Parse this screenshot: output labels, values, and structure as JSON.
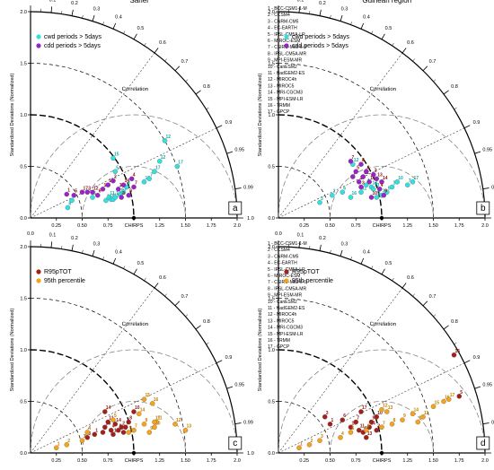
{
  "figure": {
    "model_list": [
      "1 - BCC-CSM1-1-M",
      "2 - CCSM4",
      "3 - CNRM-CM5",
      "4 - EC-EARTH",
      "5 - IPSL-CM5A-LR",
      "6 - MIROC-ESM",
      "7 - CSIRO-Mk3-6-0",
      "8 - IPSL-CM5A-MR",
      "9 - MPI-ESM-MR",
      "10 - CanESM2",
      "11 - HadGEM2-ES",
      "12 - MIROC4h",
      "13 - MIROC5",
      "14 - MRI-CGCM3",
      "15 - MPI-ESM-LR",
      "16 - TRMM",
      "17 - GPCP"
    ],
    "ylabel": "Standardized Deviations (Normalized)",
    "corr_label": "Correlation",
    "ref_label": "CHIRPS",
    "ticks": [
      "0.25",
      "0.50",
      "0.75",
      "1.00",
      "1.25",
      "1.50",
      "1.75",
      "2.0"
    ],
    "yticks": [
      "0.0",
      "0.5",
      "1.0",
      "1.5",
      "2.0"
    ],
    "corr_ticks": [
      "0.0",
      "0.1",
      "0.2",
      "0.3",
      "0.4",
      "0.5",
      "0.6",
      "0.7",
      "0.8",
      "0.9",
      "0.95",
      "0.99",
      "1.0"
    ],
    "colors": {
      "cyan": "#33e0e0",
      "purple": "#9a22c8",
      "darkred": "#a3201a",
      "orange": "#f6a21a"
    }
  },
  "chart_data": [
    {
      "type": "scatter",
      "title": "Sahel",
      "panel_label": "a",
      "legend_position": "top-left",
      "series": [
        {
          "name": "cwd periods > 5days",
          "color": "#33e0e0",
          "points": [
            [
              0.36,
              0.1,
              "8"
            ],
            [
              0.4,
              0.17,
              "1"
            ],
            [
              0.6,
              0.2,
              "6"
            ],
            [
              0.73,
              0.17,
              "16"
            ],
            [
              0.76,
              0.2,
              "11"
            ],
            [
              0.78,
              0.18,
              "4"
            ],
            [
              0.8,
              0.18,
              "13"
            ],
            [
              0.82,
              0.2,
              "14"
            ],
            [
              0.87,
              0.23,
              "9"
            ],
            [
              0.9,
              0.25,
              "2"
            ],
            [
              0.82,
              0.45,
              "5"
            ],
            [
              0.8,
              0.58,
              "15"
            ],
            [
              0.93,
              0.3,
              "3"
            ],
            [
              1.1,
              0.35,
              "10"
            ],
            [
              1.15,
              0.38,
              "7"
            ],
            [
              1.2,
              0.45,
              "17"
            ],
            [
              1.25,
              0.55,
              "12"
            ],
            [
              1.3,
              0.75,
              "12"
            ],
            [
              1.42,
              0.5,
              "17"
            ]
          ]
        },
        {
          "name": "cdd periods > 5days",
          "color": "#9a22c8",
          "points": [
            [
              0.35,
              0.23,
              "1"
            ],
            [
              0.42,
              0.22,
              "5"
            ],
            [
              0.5,
              0.25,
              "17"
            ],
            [
              0.55,
              0.25,
              "3"
            ],
            [
              0.6,
              0.25,
              "12"
            ],
            [
              0.65,
              0.22,
              "6"
            ],
            [
              0.7,
              0.28,
              "16"
            ],
            [
              0.75,
              0.32,
              "10"
            ],
            [
              0.8,
              0.36,
              "2"
            ],
            [
              0.85,
              0.28,
              "13"
            ],
            [
              0.9,
              0.32,
              "14"
            ],
            [
              0.98,
              0.38,
              "4"
            ],
            [
              0.95,
              0.22,
              "9"
            ],
            [
              0.88,
              0.2,
              "8"
            ],
            [
              1.0,
              0.3,
              "7"
            ]
          ]
        }
      ]
    },
    {
      "type": "scatter",
      "title": "Guinean region",
      "panel_label": "b",
      "legend_position": "top-left",
      "series": [
        {
          "name": "cwd periods > 5days",
          "color": "#33e0e0",
          "points": [
            [
              0.4,
              0.15,
              "3"
            ],
            [
              0.52,
              0.22,
              "1"
            ],
            [
              0.62,
              0.25,
              "6"
            ],
            [
              0.7,
              0.2,
              "16"
            ],
            [
              0.8,
              0.25,
              "11"
            ],
            [
              0.85,
              0.32,
              "4"
            ],
            [
              0.9,
              0.3,
              "14"
            ],
            [
              0.92,
              0.28,
              "13"
            ],
            [
              0.95,
              0.2,
              "9"
            ],
            [
              1.0,
              0.22,
              "2"
            ],
            [
              1.05,
              0.25,
              "5"
            ],
            [
              1.1,
              0.3,
              "15"
            ],
            [
              1.15,
              0.35,
              "10"
            ],
            [
              1.25,
              0.32,
              "7"
            ],
            [
              1.3,
              0.35,
              "17"
            ],
            [
              0.72,
              0.52,
              "12"
            ]
          ]
        },
        {
          "name": "cdd periods > 5days",
          "color": "#9a22c8",
          "points": [
            [
              0.72,
              0.4,
              "1"
            ],
            [
              0.75,
              0.45,
              "5"
            ],
            [
              0.78,
              0.35,
              "17"
            ],
            [
              0.8,
              0.3,
              "3"
            ],
            [
              0.82,
              0.4,
              "12"
            ],
            [
              0.85,
              0.45,
              "6"
            ],
            [
              0.88,
              0.35,
              "16"
            ],
            [
              0.9,
              0.2,
              "10"
            ],
            [
              0.92,
              0.42,
              "2"
            ],
            [
              0.95,
              0.38,
              "13"
            ],
            [
              1.0,
              0.35,
              "14"
            ],
            [
              0.98,
              0.28,
              "4"
            ],
            [
              1.02,
              0.22,
              "9"
            ],
            [
              0.8,
              0.52,
              "8"
            ],
            [
              0.7,
              0.55,
              "7"
            ]
          ]
        }
      ]
    },
    {
      "type": "scatter",
      "title": "",
      "panel_label": "c",
      "legend_position": "top-left",
      "series": [
        {
          "name": "R95pTOT",
          "color": "#a3201a",
          "points": [
            [
              0.55,
              0.15,
              "3"
            ],
            [
              0.62,
              0.18,
              "1"
            ],
            [
              0.7,
              0.2,
              "6"
            ],
            [
              0.72,
              0.25,
              "16"
            ],
            [
              0.75,
              0.3,
              "11"
            ],
            [
              0.78,
              0.22,
              "4"
            ],
            [
              0.8,
              0.18,
              "13"
            ],
            [
              0.82,
              0.28,
              "14"
            ],
            [
              0.85,
              0.22,
              "9"
            ],
            [
              0.88,
              0.25,
              "2"
            ],
            [
              0.9,
              0.2,
              "5"
            ],
            [
              0.72,
              0.4,
              "14"
            ],
            [
              0.95,
              0.3,
              "8"
            ],
            [
              1.0,
              0.4,
              "10"
            ],
            [
              0.92,
              0.25,
              "7"
            ]
          ]
        },
        {
          "name": "95th percentile",
          "color": "#f6a21a",
          "points": [
            [
              0.25,
              0.05,
              "1"
            ],
            [
              0.35,
              0.08,
              "2"
            ],
            [
              0.5,
              0.12,
              "3"
            ],
            [
              0.55,
              0.2,
              "4"
            ],
            [
              0.8,
              0.32,
              "5"
            ],
            [
              0.95,
              0.2,
              "6"
            ],
            [
              1.0,
              0.22,
              "7"
            ],
            [
              1.1,
              0.28,
              "8"
            ],
            [
              1.15,
              0.2,
              "9"
            ],
            [
              1.2,
              0.25,
              "10"
            ],
            [
              1.22,
              0.3,
              "11"
            ],
            [
              1.4,
              0.28,
              "12"
            ],
            [
              1.5,
              0.22,
              "13"
            ],
            [
              1.05,
              0.38,
              "14"
            ],
            [
              1.1,
              0.52,
              "15"
            ],
            [
              1.18,
              0.48,
              "16"
            ],
            [
              1.2,
              0.3,
              "17"
            ]
          ]
        }
      ]
    },
    {
      "type": "scatter",
      "title": "",
      "panel_label": "d",
      "legend_position": "top-left",
      "series": [
        {
          "name": "R95pTOT",
          "color": "#a3201a",
          "points": [
            [
              0.45,
              0.35,
              "3"
            ],
            [
              0.5,
              0.28,
              "1"
            ],
            [
              0.62,
              0.32,
              "6"
            ],
            [
              0.7,
              0.25,
              "16"
            ],
            [
              0.78,
              0.22,
              "11"
            ],
            [
              0.82,
              0.2,
              "4"
            ],
            [
              0.85,
              0.15,
              "13"
            ],
            [
              0.88,
              0.25,
              "14"
            ],
            [
              0.9,
              0.3,
              "9"
            ],
            [
              0.95,
              0.22,
              "2"
            ],
            [
              1.75,
              0.55,
              "5"
            ],
            [
              1.7,
              0.95,
              "15"
            ],
            [
              0.95,
              0.35,
              "10"
            ],
            [
              0.8,
              0.4,
              "17"
            ],
            [
              0.75,
              0.3,
              "7"
            ]
          ]
        },
        {
          "name": "95th percentile",
          "color": "#f6a21a",
          "points": [
            [
              0.2,
              0.05,
              "1"
            ],
            [
              0.3,
              0.08,
              "2"
            ],
            [
              0.4,
              0.12,
              "3"
            ],
            [
              0.6,
              0.15,
              "4"
            ],
            [
              0.7,
              0.2,
              "5"
            ],
            [
              0.85,
              0.22,
              "6"
            ],
            [
              1.0,
              0.25,
              "7"
            ],
            [
              1.1,
              0.28,
              "8"
            ],
            [
              1.2,
              0.32,
              "9"
            ],
            [
              1.35,
              0.3,
              "10"
            ],
            [
              1.4,
              0.35,
              "11"
            ],
            [
              1.0,
              0.42,
              "12"
            ],
            [
              1.05,
              0.4,
              "13"
            ],
            [
              1.3,
              0.38,
              "14"
            ],
            [
              1.5,
              0.45,
              "15"
            ],
            [
              1.6,
              0.5,
              "16"
            ],
            [
              1.65,
              0.52,
              "17"
            ]
          ]
        }
      ]
    }
  ]
}
